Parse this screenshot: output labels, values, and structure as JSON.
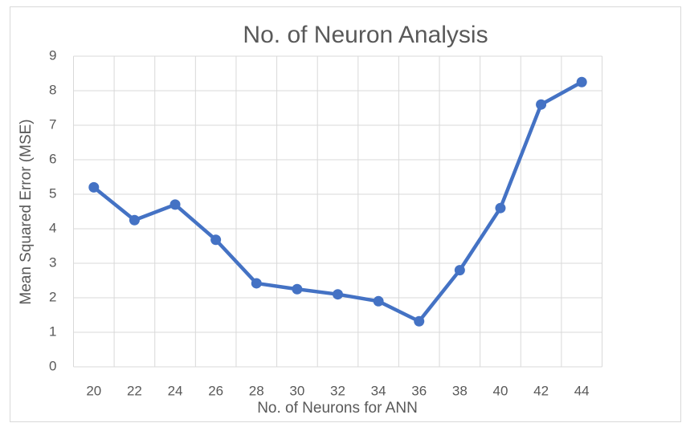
{
  "chart_data": {
    "type": "line",
    "title": "No. of Neuron Analysis",
    "x_label": "No. of Neurons for ANN",
    "y_label": "Mean Squared Error (MSE)",
    "categories": [
      "20",
      "22",
      "24",
      "26",
      "28",
      "30",
      "32",
      "34",
      "36",
      "38",
      "40",
      "42",
      "44"
    ],
    "series": [
      {
        "name": "MSE",
        "color": "#4472c4",
        "values": [
          5.2,
          4.25,
          4.7,
          3.68,
          2.42,
          2.25,
          2.1,
          1.9,
          1.32,
          2.8,
          4.6,
          7.6,
          8.25
        ]
      }
    ],
    "ylim": [
      0,
      9
    ],
    "yticks": [
      0,
      1,
      2,
      3,
      4,
      5,
      6,
      7,
      8,
      9
    ],
    "grid": true
  }
}
